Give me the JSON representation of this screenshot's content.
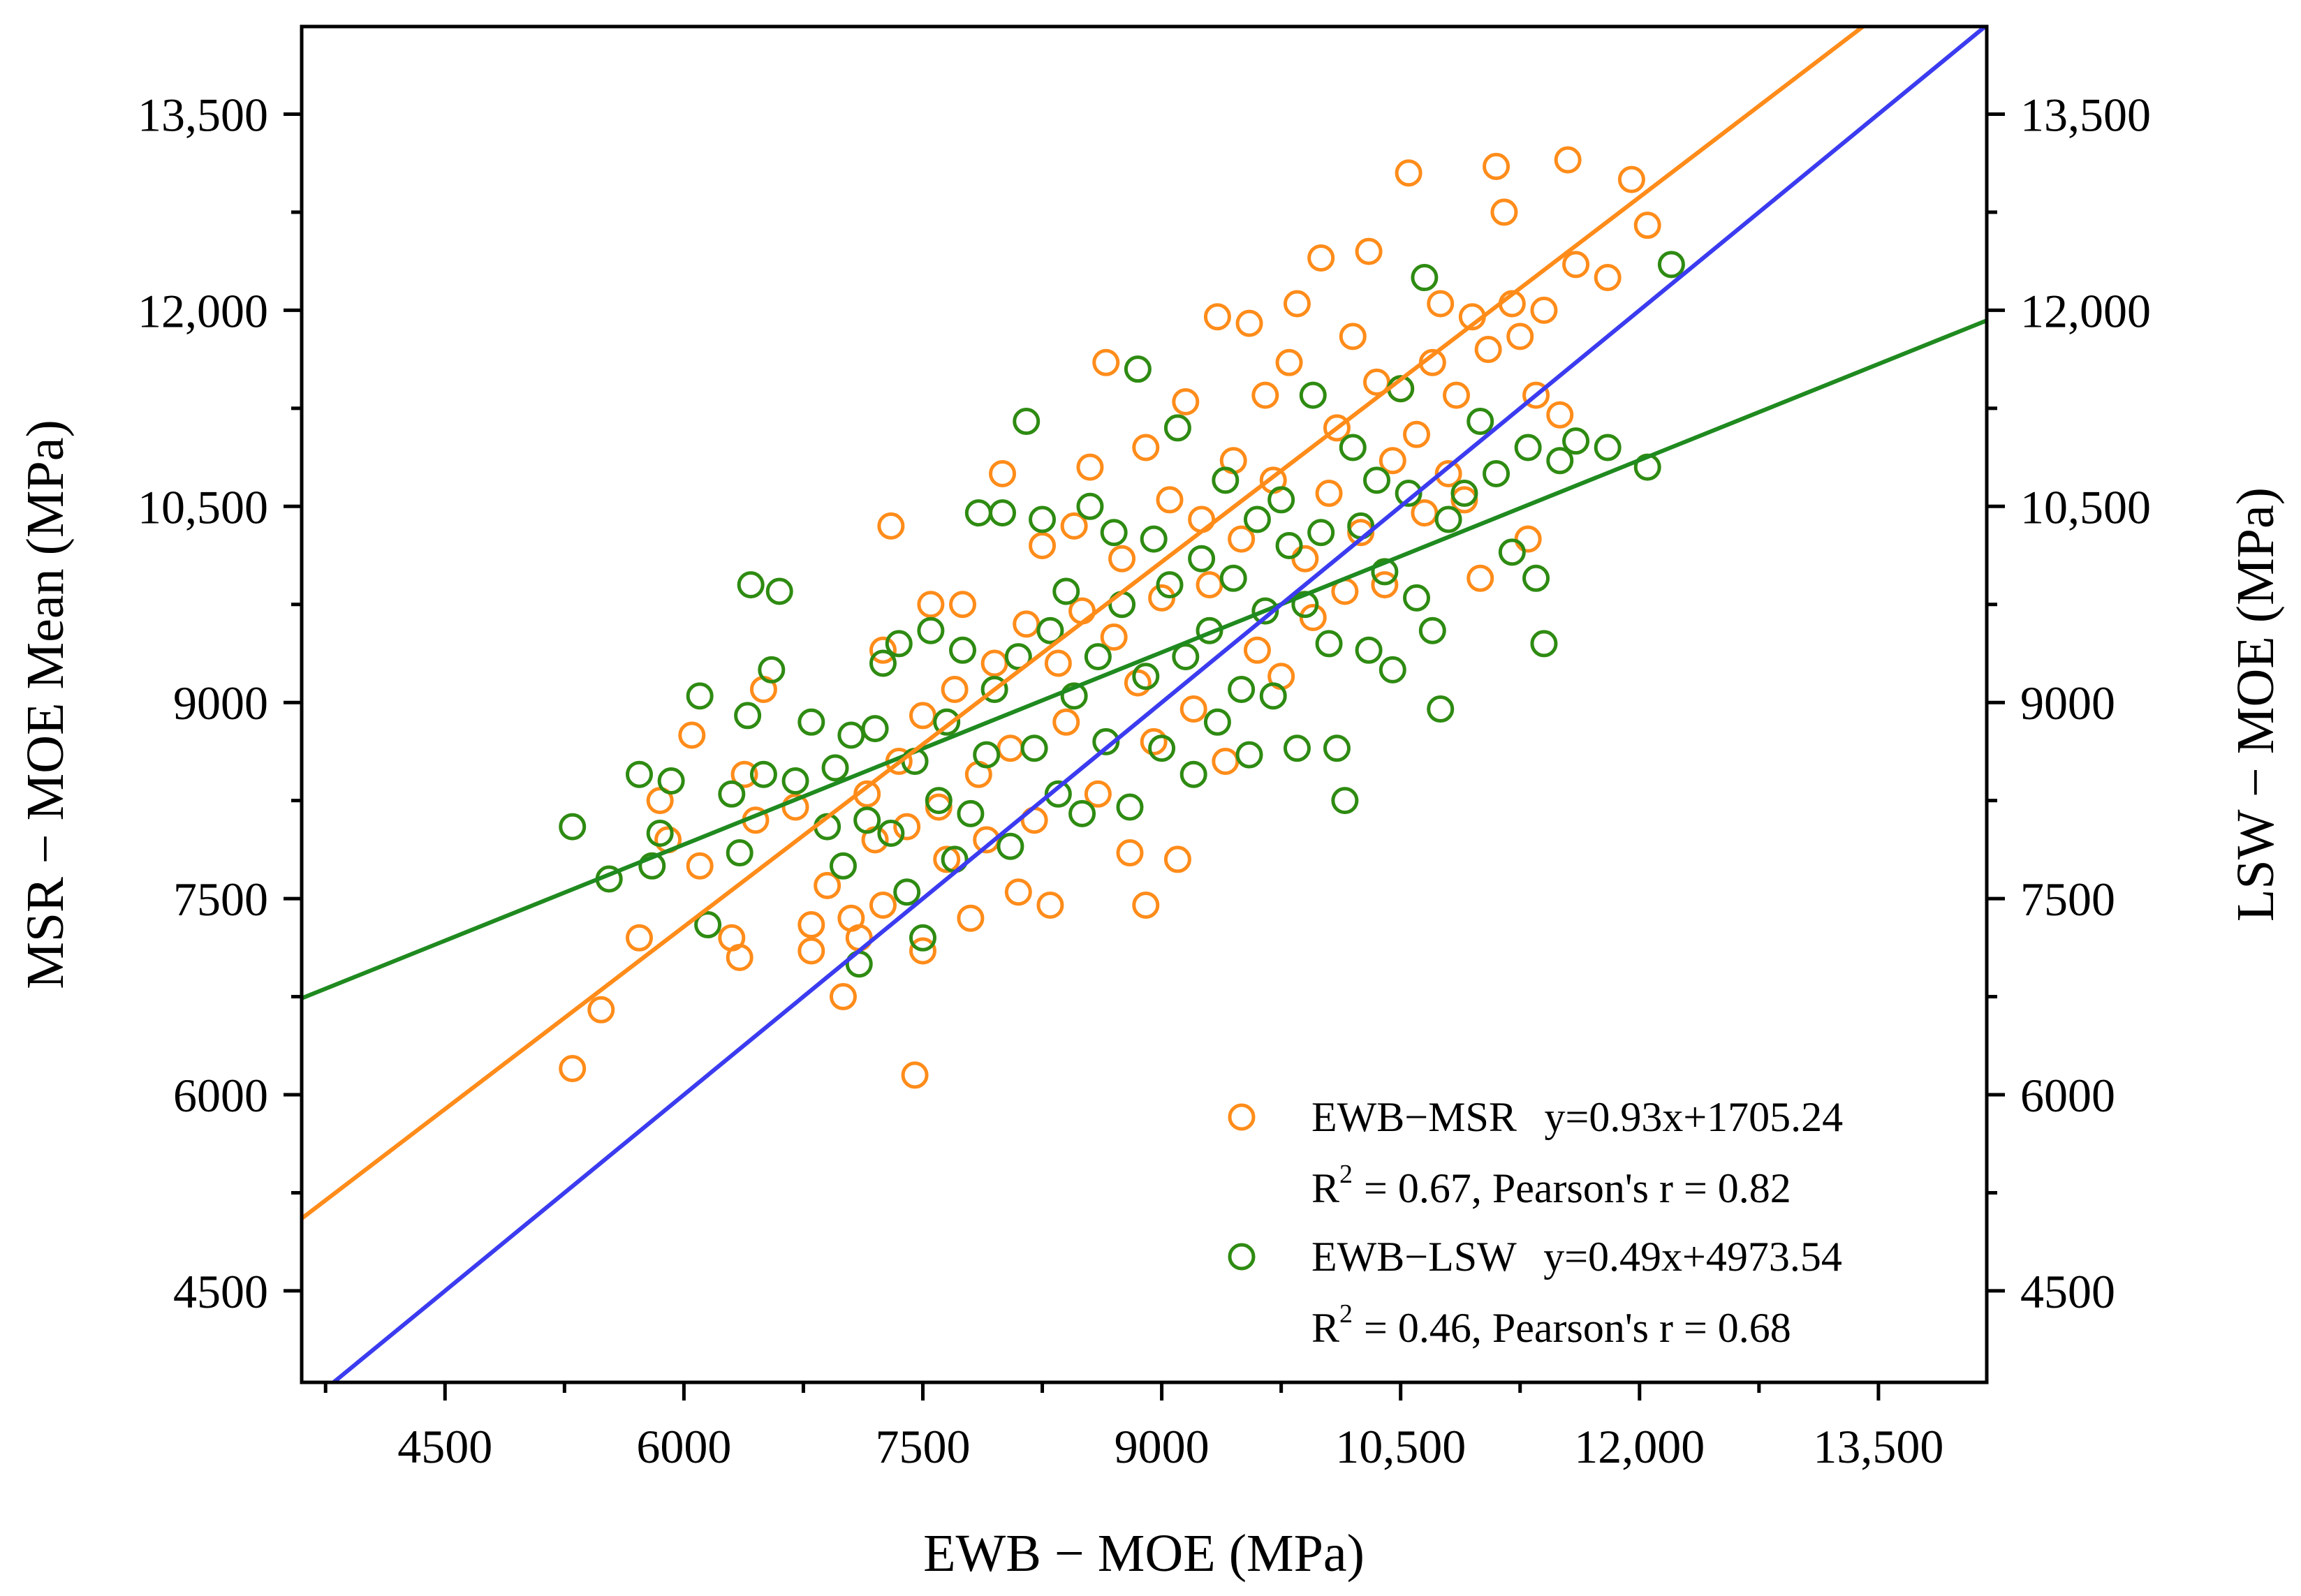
{
  "chart_data": {
    "type": "scatter",
    "title": "",
    "xlabel": "EWB − MOE (MPa)",
    "ylabel_left": "MSR − MOE Mean (MPa)",
    "ylabel_right": "LSW − MOE (MPa)",
    "xlim": [
      3600,
      14180
    ],
    "ylim": [
      3800,
      14170
    ],
    "xticks": [
      4500,
      6000,
      7500,
      9000,
      10500,
      12000,
      13500
    ],
    "xtick_labels": [
      "4500",
      "6000",
      "7500",
      "9000",
      "10,500",
      "12,000",
      "13,500"
    ],
    "yticks": [
      4500,
      6000,
      7500,
      9000,
      10500,
      12000,
      13500
    ],
    "ytick_labels": [
      "4500",
      "6000",
      "7500",
      "9000",
      "10,500",
      "12,000",
      "13,500"
    ],
    "grid": false,
    "legend_position": "bottom-right",
    "series": [
      {
        "name": "EWB−MSR",
        "color": "#ff8c1a",
        "marker": "open-circle",
        "fit": {
          "slope": 0.93,
          "intercept": 1705.24,
          "color": "#ff8c1a"
        },
        "equation": "y=0.93x+1705.24",
        "stats": "= 0.67, Pearson's r = 0.82",
        "points": [
          [
            5300,
            6200
          ],
          [
            5480,
            6650
          ],
          [
            5720,
            7200
          ],
          [
            5850,
            8250
          ],
          [
            5900,
            7950
          ],
          [
            6050,
            8750
          ],
          [
            6100,
            7750
          ],
          [
            6300,
            7200
          ],
          [
            6350,
            7050
          ],
          [
            6380,
            8450
          ],
          [
            6450,
            8100
          ],
          [
            6500,
            9100
          ],
          [
            6700,
            8200
          ],
          [
            6800,
            7300
          ],
          [
            6800,
            7100
          ],
          [
            6900,
            7600
          ],
          [
            7000,
            6750
          ],
          [
            7050,
            7350
          ],
          [
            7100,
            7200
          ],
          [
            7150,
            8300
          ],
          [
            7200,
            7950
          ],
          [
            7250,
            9400
          ],
          [
            7250,
            7450
          ],
          [
            7300,
            10350
          ],
          [
            7350,
            8550
          ],
          [
            7400,
            8050
          ],
          [
            7450,
            6150
          ],
          [
            7500,
            7100
          ],
          [
            7500,
            8900
          ],
          [
            7550,
            9750
          ],
          [
            7600,
            8200
          ],
          [
            7650,
            7800
          ],
          [
            7700,
            9100
          ],
          [
            7750,
            9750
          ],
          [
            7800,
            7350
          ],
          [
            7850,
            8450
          ],
          [
            7900,
            7950
          ],
          [
            7950,
            9300
          ],
          [
            8000,
            10750
          ],
          [
            8050,
            8650
          ],
          [
            8100,
            7550
          ],
          [
            8150,
            9600
          ],
          [
            8200,
            8100
          ],
          [
            8250,
            10200
          ],
          [
            8300,
            7450
          ],
          [
            8350,
            9300
          ],
          [
            8400,
            8850
          ],
          [
            8450,
            10350
          ],
          [
            8500,
            9700
          ],
          [
            8550,
            10800
          ],
          [
            8600,
            8300
          ],
          [
            8650,
            11600
          ],
          [
            8700,
            9500
          ],
          [
            8750,
            10100
          ],
          [
            8800,
            7850
          ],
          [
            8850,
            9150
          ],
          [
            8900,
            7450
          ],
          [
            8900,
            10950
          ],
          [
            8950,
            8700
          ],
          [
            9000,
            9800
          ],
          [
            9050,
            10550
          ],
          [
            9100,
            7800
          ],
          [
            9150,
            11300
          ],
          [
            9200,
            8950
          ],
          [
            9250,
            10400
          ],
          [
            9300,
            9900
          ],
          [
            9350,
            11950
          ],
          [
            9400,
            8550
          ],
          [
            9450,
            10850
          ],
          [
            9500,
            10250
          ],
          [
            9550,
            11900
          ],
          [
            9600,
            9400
          ],
          [
            9650,
            11350
          ],
          [
            9700,
            10700
          ],
          [
            9750,
            9200
          ],
          [
            9800,
            11600
          ],
          [
            9850,
            12050
          ],
          [
            9900,
            10100
          ],
          [
            9950,
            9650
          ],
          [
            10000,
            12400
          ],
          [
            10050,
            10600
          ],
          [
            10100,
            11100
          ],
          [
            10150,
            9850
          ],
          [
            10200,
            11800
          ],
          [
            10250,
            10300
          ],
          [
            10300,
            12450
          ],
          [
            10350,
            11450
          ],
          [
            10400,
            9900
          ],
          [
            10450,
            10850
          ],
          [
            10500,
            11400
          ],
          [
            10550,
            13050
          ],
          [
            10600,
            11050
          ],
          [
            10650,
            10450
          ],
          [
            10700,
            11600
          ],
          [
            10750,
            12050
          ],
          [
            10800,
            10750
          ],
          [
            10850,
            11350
          ],
          [
            10900,
            10550
          ],
          [
            10950,
            11950
          ],
          [
            11000,
            9950
          ],
          [
            11050,
            11700
          ],
          [
            11100,
            13100
          ],
          [
            11150,
            12750
          ],
          [
            11200,
            12050
          ],
          [
            11250,
            11800
          ],
          [
            11300,
            10250
          ],
          [
            11350,
            11350
          ],
          [
            11400,
            12000
          ],
          [
            11500,
            11200
          ],
          [
            11550,
            13150
          ],
          [
            11600,
            12350
          ],
          [
            11800,
            12250
          ],
          [
            11950,
            13000
          ],
          [
            12050,
            12650
          ]
        ]
      },
      {
        "name": "EWB−LSW",
        "color": "#2e8b12",
        "marker": "open-circle",
        "fit": {
          "slope": 0.49,
          "intercept": 4973.54,
          "color": "#1f8a1f"
        },
        "equation": "y=0.49x+4973.54",
        "stats": "= 0.46, Pearson's r = 0.68",
        "points": [
          [
            5300,
            8050
          ],
          [
            5530,
            7650
          ],
          [
            5720,
            8450
          ],
          [
            5800,
            7750
          ],
          [
            5850,
            8000
          ],
          [
            5920,
            8400
          ],
          [
            6100,
            9050
          ],
          [
            6150,
            7300
          ],
          [
            6300,
            8300
          ],
          [
            6350,
            7850
          ],
          [
            6400,
            8900
          ],
          [
            6420,
            9900
          ],
          [
            6500,
            8450
          ],
          [
            6550,
            9250
          ],
          [
            6600,
            9850
          ],
          [
            6700,
            8400
          ],
          [
            6800,
            8850
          ],
          [
            6900,
            8050
          ],
          [
            6950,
            8500
          ],
          [
            7000,
            7750
          ],
          [
            7050,
            8750
          ],
          [
            7100,
            7000
          ],
          [
            7150,
            8100
          ],
          [
            7200,
            8800
          ],
          [
            7250,
            9300
          ],
          [
            7300,
            8000
          ],
          [
            7350,
            9450
          ],
          [
            7400,
            7550
          ],
          [
            7450,
            8550
          ],
          [
            7500,
            7200
          ],
          [
            7550,
            9550
          ],
          [
            7600,
            8250
          ],
          [
            7650,
            8850
          ],
          [
            7700,
            7800
          ],
          [
            7750,
            9400
          ],
          [
            7800,
            8150
          ],
          [
            7850,
            10450
          ],
          [
            7900,
            8600
          ],
          [
            7950,
            9100
          ],
          [
            8000,
            10450
          ],
          [
            8050,
            7900
          ],
          [
            8100,
            9350
          ],
          [
            8150,
            11150
          ],
          [
            8200,
            8650
          ],
          [
            8250,
            10400
          ],
          [
            8300,
            9550
          ],
          [
            8350,
            8300
          ],
          [
            8400,
            9850
          ],
          [
            8450,
            9050
          ],
          [
            8500,
            8150
          ],
          [
            8550,
            10500
          ],
          [
            8600,
            9350
          ],
          [
            8650,
            8700
          ],
          [
            8700,
            10300
          ],
          [
            8750,
            9750
          ],
          [
            8800,
            8200
          ],
          [
            8850,
            11550
          ],
          [
            8900,
            9200
          ],
          [
            8950,
            10250
          ],
          [
            9000,
            8650
          ],
          [
            9050,
            9900
          ],
          [
            9100,
            11100
          ],
          [
            9150,
            9350
          ],
          [
            9200,
            8450
          ],
          [
            9250,
            10100
          ],
          [
            9300,
            9550
          ],
          [
            9350,
            8850
          ],
          [
            9400,
            10700
          ],
          [
            9450,
            9950
          ],
          [
            9500,
            9100
          ],
          [
            9550,
            8600
          ],
          [
            9600,
            10400
          ],
          [
            9650,
            9700
          ],
          [
            9700,
            9050
          ],
          [
            9750,
            10550
          ],
          [
            9800,
            10200
          ],
          [
            9850,
            8650
          ],
          [
            9900,
            9750
          ],
          [
            9950,
            11350
          ],
          [
            10000,
            10300
          ],
          [
            10050,
            9450
          ],
          [
            10100,
            8650
          ],
          [
            10150,
            8250
          ],
          [
            10200,
            10950
          ],
          [
            10250,
            10350
          ],
          [
            10300,
            9400
          ],
          [
            10350,
            10700
          ],
          [
            10400,
            10000
          ],
          [
            10450,
            9250
          ],
          [
            10500,
            11400
          ],
          [
            10550,
            10600
          ],
          [
            10600,
            9800
          ],
          [
            10650,
            12250
          ],
          [
            10700,
            9550
          ],
          [
            10750,
            8950
          ],
          [
            10800,
            10400
          ],
          [
            10900,
            10600
          ],
          [
            11000,
            11150
          ],
          [
            11100,
            10750
          ],
          [
            11200,
            10150
          ],
          [
            11300,
            10950
          ],
          [
            11350,
            9950
          ],
          [
            11400,
            9450
          ],
          [
            11500,
            10850
          ],
          [
            11600,
            11000
          ],
          [
            11800,
            10950
          ],
          [
            12050,
            10800
          ],
          [
            12200,
            12350
          ]
        ]
      },
      {
        "name": "1:1 line",
        "color": "#3b3bf0",
        "fit": {
          "slope": 1,
          "intercept": 0,
          "color": "#3b3bf0"
        }
      }
    ],
    "legend": [
      {
        "label": "EWB−MSR",
        "equation": "y=0.93x+1705.24",
        "r2_label": "R",
        "r2_sup": "2",
        "stats": "= 0.67, Pearson's r = 0.82",
        "color": "#ff8c1a"
      },
      {
        "label": "EWB−LSW",
        "equation": "y=0.49x+4973.54",
        "r2_label": "R",
        "r2_sup": "2",
        "stats": "= 0.46, Pearson's r = 0.68",
        "color": "#2e8b12"
      }
    ]
  }
}
